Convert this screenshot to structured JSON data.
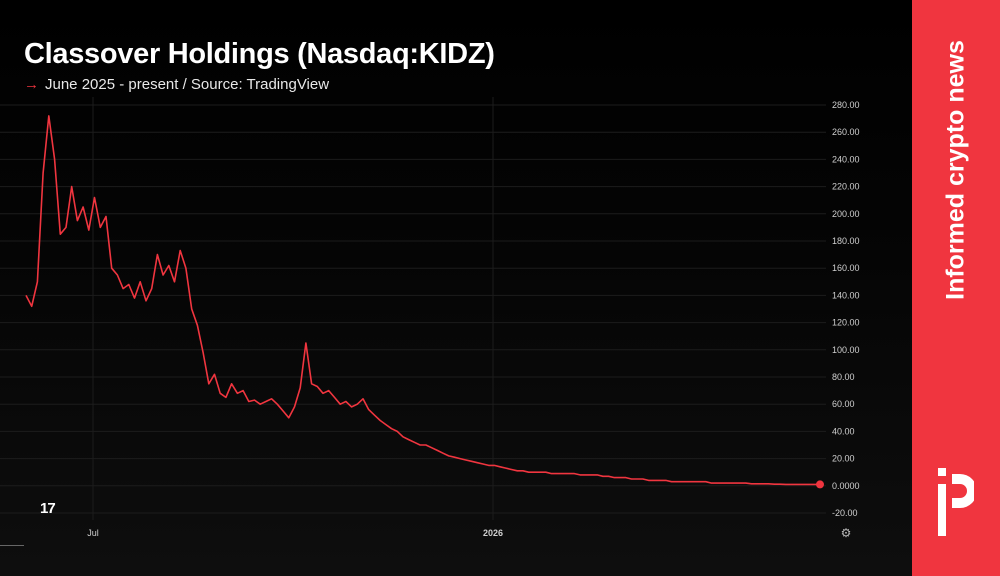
{
  "header": {
    "title": "Classover Holdings (Nasdaq:KIDZ)",
    "subtitle": "June 2025 - present / Source: TradingView"
  },
  "sidebar": {
    "text": "Informed crypto news"
  },
  "chart_data": {
    "type": "line",
    "ylim": [
      -20,
      280
    ],
    "yticks": [
      "280.00",
      "260.00",
      "240.00",
      "220.00",
      "200.00",
      "180.00",
      "160.00",
      "140.00",
      "120.00",
      "100.00",
      "80.00",
      "60.00",
      "40.00",
      "20.00",
      "0.0000",
      "-20.00"
    ],
    "xticks": [
      "Jul",
      "2026"
    ],
    "grid": true,
    "series": [
      {
        "color": "#f0353f",
        "values": [
          140,
          132,
          150,
          230,
          272,
          240,
          185,
          190,
          220,
          195,
          205,
          188,
          212,
          190,
          198,
          160,
          155,
          145,
          148,
          138,
          150,
          136,
          145,
          170,
          155,
          162,
          150,
          173,
          160,
          130,
          118,
          98,
          75,
          82,
          68,
          65,
          75,
          68,
          70,
          62,
          63,
          60,
          62,
          64,
          60,
          55,
          50,
          58,
          72,
          105,
          75,
          73,
          68,
          70,
          65,
          60,
          62,
          58,
          60,
          64,
          56,
          52,
          48,
          45,
          42,
          40,
          36,
          34,
          32,
          30,
          30,
          28,
          26,
          24,
          22,
          21,
          20,
          19,
          18,
          17,
          16,
          15,
          15,
          14,
          13,
          12,
          11,
          11,
          10,
          10,
          10,
          10,
          9,
          9,
          9,
          9,
          9,
          8,
          8,
          8,
          8,
          7,
          7,
          6,
          6,
          6,
          5,
          5,
          5,
          4,
          4,
          4,
          4,
          3,
          3,
          3,
          3,
          3,
          3,
          3,
          2,
          2,
          2,
          2,
          2,
          2,
          2,
          1.5,
          1.5,
          1.5,
          1.5,
          1.2,
          1.2,
          1,
          1,
          1,
          1,
          1,
          1,
          1
        ]
      }
    ]
  },
  "colors": {
    "accent": "#f0353f",
    "background": "#000000"
  },
  "icons": {
    "tradingview": "tradingview-logo-icon",
    "settings": "settings-gear-icon",
    "brand": "protos-logo-icon"
  }
}
